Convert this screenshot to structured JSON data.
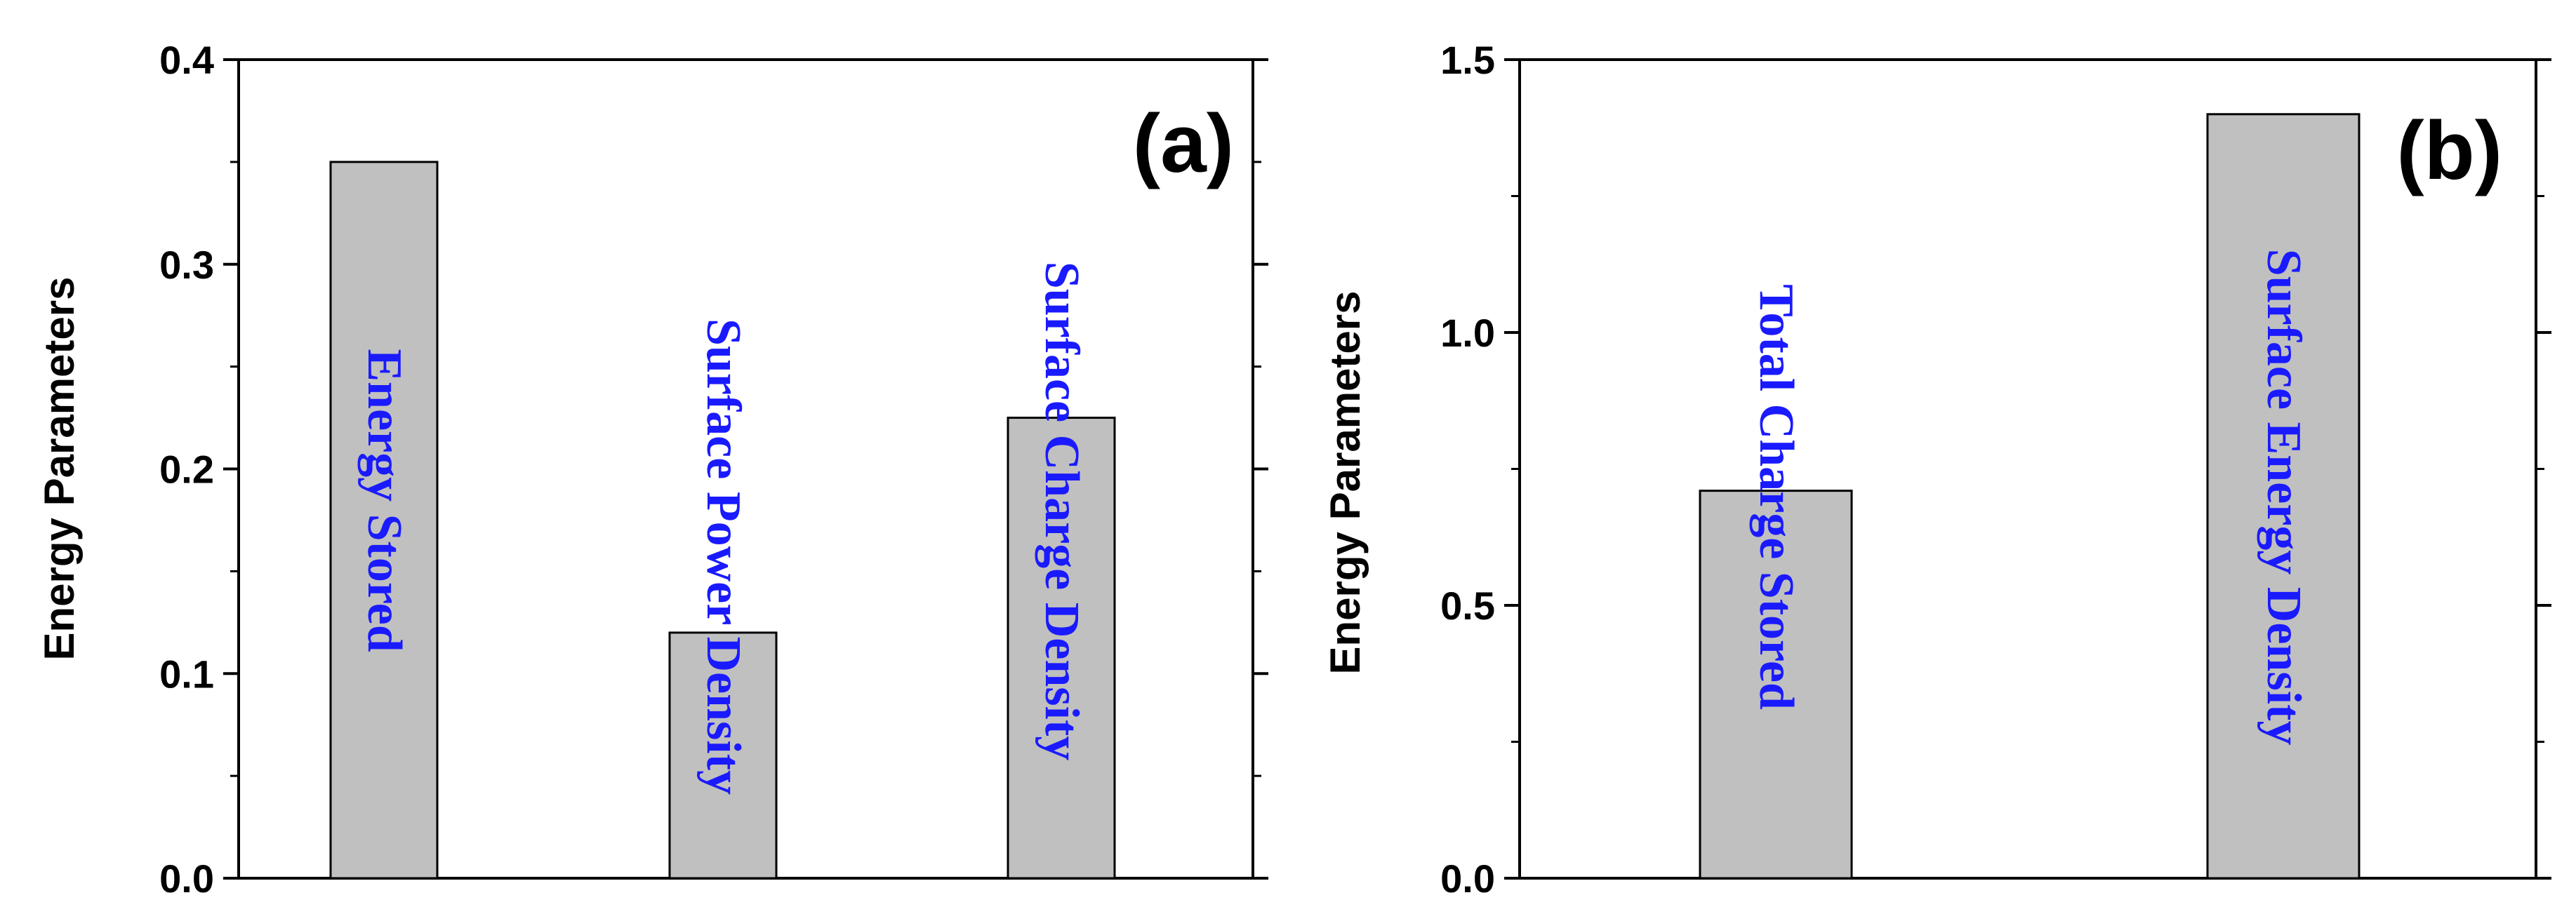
{
  "chart_data": [
    {
      "type": "bar",
      "panel_label": "(a)",
      "ylabel": "Energy Parameters",
      "xlabel": "",
      "ylim": [
        0,
        0.4
      ],
      "yticks": [
        "0.0",
        "0.1",
        "0.2",
        "0.3",
        "0.4"
      ],
      "categories": [
        "Energy Stored",
        "Surface Power Density",
        "Surface Charge Density"
      ],
      "values": [
        0.35,
        0.12,
        0.225
      ],
      "bar_color": "#c0c0c0",
      "label_color": "#1a1aff",
      "grid": false
    },
    {
      "type": "bar",
      "panel_label": "(b)",
      "ylabel": "Energy Parameters",
      "xlabel": "",
      "ylim": [
        0,
        1.5
      ],
      "yticks": [
        "0.0",
        "0.5",
        "1.0",
        "1.5"
      ],
      "categories": [
        "Total Charge Stored",
        "Surface Energy Density"
      ],
      "values": [
        0.71,
        1.4
      ],
      "bar_color": "#c0c0c0",
      "label_color": "#1a1aff",
      "grid": false
    }
  ]
}
